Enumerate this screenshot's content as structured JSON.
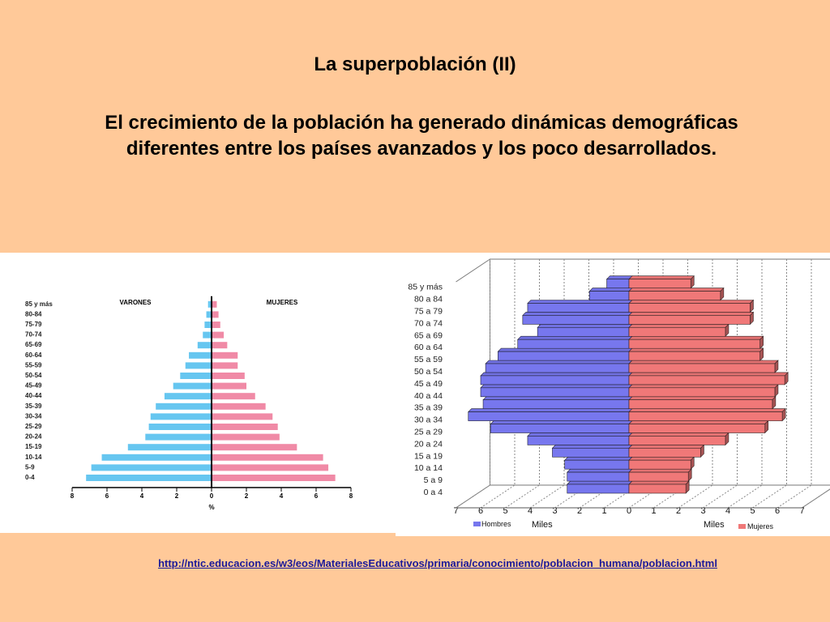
{
  "slide": {
    "title": "La superpoblación (II)",
    "subtitle": "El crecimiento de la población ha generado dinámicas demográficas diferentes entre los países avanzados y los poco desarrollados.",
    "link": "http://ntic.educacion.es/w3/eos/MaterialesEducativos/primaria/conocimiento/poblacion_humana/poblacion.html",
    "colors": {
      "background": "#ffc999",
      "left_male": "#66c6f0",
      "left_female": "#f08aa6",
      "right_male": "#7777ee",
      "right_female": "#f07878"
    }
  },
  "chart_data": [
    {
      "type": "bar",
      "orientation": "population-pyramid",
      "categories": [
        "0-4",
        "5-9",
        "10-14",
        "15-19",
        "20-24",
        "25-29",
        "30-34",
        "35-39",
        "40-44",
        "45-49",
        "50-54",
        "55-59",
        "60-64",
        "65-69",
        "70-74",
        "75-79",
        "80-84",
        "85 y más"
      ],
      "series": [
        {
          "name": "VARONES",
          "values": [
            7.2,
            6.9,
            6.3,
            4.8,
            3.8,
            3.6,
            3.5,
            3.2,
            2.7,
            2.2,
            1.8,
            1.5,
            1.3,
            0.8,
            0.5,
            0.4,
            0.3,
            0.2
          ]
        },
        {
          "name": "MUJERES",
          "values": [
            7.1,
            6.7,
            6.4,
            4.9,
            3.9,
            3.8,
            3.5,
            3.1,
            2.5,
            2.0,
            1.9,
            1.5,
            1.5,
            0.9,
            0.7,
            0.5,
            0.4,
            0.3
          ]
        }
      ],
      "xlabel": "%",
      "xticks": [
        "8",
        "6",
        "4",
        "2",
        "0",
        "2",
        "4",
        "6",
        "8"
      ],
      "xlim": [
        -8,
        8
      ],
      "legend": "top"
    },
    {
      "type": "bar",
      "orientation": "population-pyramid",
      "categories": [
        "0 a 4",
        "5 a 9",
        "10 a 14",
        "15 a 19",
        "20 a 24",
        "25 a 29",
        "30 a 34",
        "35 a 39",
        "40 a 44",
        "45 a 49",
        "50 a 54",
        "55 a 59",
        "60 a 64",
        "65 a 69",
        "70 a 74",
        "75 a 79",
        "80 a 84",
        "85 y más"
      ],
      "series": [
        {
          "name": "Hombres",
          "values": [
            2.5,
            2.5,
            2.6,
            3.1,
            4.1,
            5.6,
            6.5,
            5.9,
            6.0,
            6.0,
            5.8,
            5.3,
            4.5,
            3.7,
            4.3,
            4.1,
            1.6,
            0.9
          ]
        },
        {
          "name": "Mujeres",
          "values": [
            2.3,
            2.4,
            2.5,
            2.9,
            3.9,
            5.5,
            6.2,
            5.8,
            5.9,
            6.3,
            5.9,
            5.3,
            5.3,
            3.9,
            4.9,
            4.9,
            3.7,
            2.5
          ]
        }
      ],
      "xticks": [
        "7",
        "6",
        "5",
        "4",
        "3",
        "2",
        "1",
        "0",
        "1",
        "2",
        "3",
        "4",
        "5",
        "6",
        "7"
      ],
      "xlim": [
        -7,
        7
      ],
      "xlabel_left": "Miles",
      "xlabel_right": "Miles",
      "legend": "bottom"
    }
  ]
}
